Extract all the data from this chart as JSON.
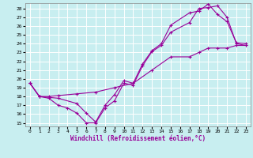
{
  "bg_color": "#c8eef0",
  "line_color": "#990099",
  "grid_color": "#ffffff",
  "xlabel": "Windchill (Refroidissement éolien,°C)",
  "xlim": [
    -0.5,
    23.5
  ],
  "ylim": [
    14.6,
    28.6
  ],
  "xticks": [
    0,
    1,
    2,
    3,
    4,
    5,
    6,
    7,
    8,
    9,
    10,
    11,
    12,
    13,
    14,
    15,
    16,
    17,
    18,
    19,
    20,
    21,
    22,
    23
  ],
  "yticks": [
    15,
    16,
    17,
    18,
    19,
    20,
    21,
    22,
    23,
    24,
    25,
    26,
    27,
    28
  ],
  "series": [
    {
      "x": [
        0,
        1,
        2,
        3,
        4,
        5,
        6,
        7,
        8,
        9,
        10,
        11,
        12,
        13,
        14,
        15,
        17,
        18,
        19,
        20,
        21,
        22,
        23
      ],
      "y": [
        19.5,
        18.0,
        17.8,
        17.0,
        16.7,
        16.1,
        15.0,
        15.0,
        16.7,
        17.5,
        19.5,
        19.3,
        21.5,
        23.1,
        23.8,
        25.3,
        26.4,
        28.0,
        28.1,
        28.3,
        27.0,
        24.0,
        23.8
      ]
    },
    {
      "x": [
        0,
        1,
        3,
        5,
        6,
        7,
        8,
        9,
        10,
        11,
        12,
        13,
        14,
        15,
        17,
        18,
        19,
        20,
        21,
        22,
        23
      ],
      "y": [
        19.5,
        18.0,
        17.8,
        17.2,
        16.1,
        15.1,
        17.0,
        18.2,
        19.8,
        19.5,
        21.7,
        23.2,
        24.0,
        26.1,
        27.5,
        27.7,
        28.5,
        27.3,
        26.5,
        24.1,
        24.0
      ]
    },
    {
      "x": [
        0,
        1,
        2,
        3,
        5,
        7,
        9,
        11,
        13,
        15,
        17,
        18,
        19,
        20,
        21,
        22,
        23
      ],
      "y": [
        19.5,
        18.0,
        18.0,
        18.1,
        18.3,
        18.5,
        19.0,
        19.5,
        21.0,
        22.5,
        22.5,
        23.0,
        23.5,
        23.5,
        23.5,
        23.8,
        23.8
      ]
    }
  ]
}
